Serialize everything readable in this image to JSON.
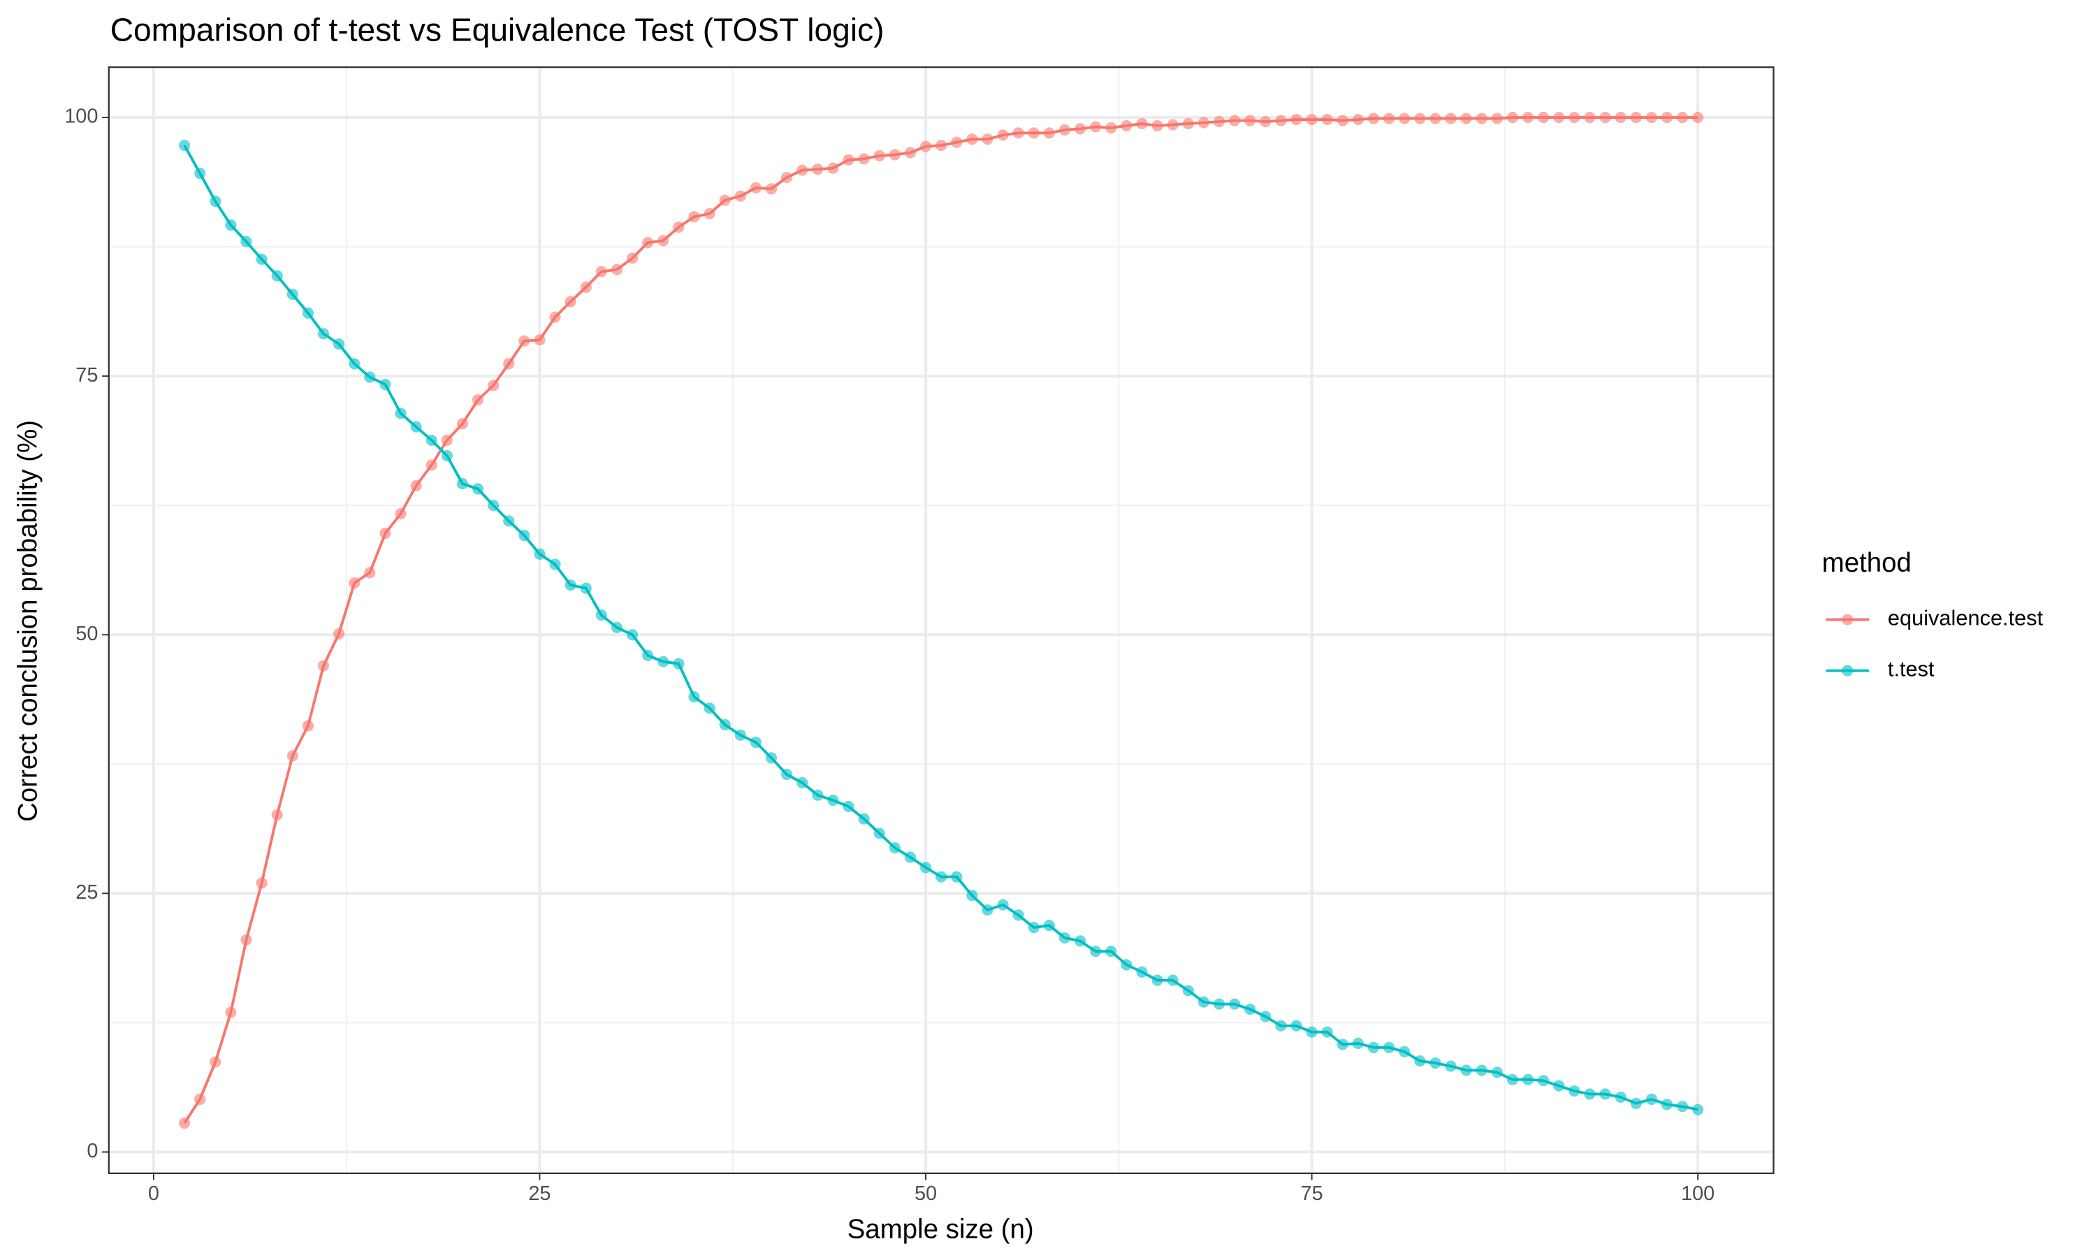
{
  "chart_data": {
    "type": "line",
    "title": "Comparison of t-test vs Equivalence Test (TOST logic)",
    "x_label": "Sample size (n)",
    "y_label": "Correct conclusion probability (%)",
    "legend_title": "method",
    "legend_position": "right",
    "grid": true,
    "x": [
      2,
      3,
      4,
      5,
      6,
      7,
      8,
      9,
      10,
      11,
      12,
      13,
      14,
      15,
      16,
      17,
      18,
      19,
      20,
      21,
      22,
      23,
      24,
      25,
      26,
      27,
      28,
      29,
      30,
      31,
      32,
      33,
      34,
      35,
      36,
      37,
      38,
      39,
      40,
      41,
      42,
      43,
      44,
      45,
      46,
      47,
      48,
      49,
      50,
      51,
      52,
      53,
      54,
      55,
      56,
      57,
      58,
      59,
      60,
      61,
      62,
      63,
      64,
      65,
      66,
      67,
      68,
      69,
      70,
      71,
      72,
      73,
      74,
      75,
      76,
      77,
      78,
      79,
      80,
      81,
      82,
      83,
      84,
      85,
      86,
      87,
      88,
      89,
      90,
      91,
      92,
      93,
      94,
      95,
      96,
      97,
      98,
      99,
      100
    ],
    "series": [
      {
        "name": "equivalence.test",
        "color": "#F8766D",
        "values": [
          2.8,
          5.1,
          8.7,
          13.5,
          20.5,
          26,
          32.6,
          38.3,
          41.2,
          47,
          50.1,
          55,
          56,
          59.8,
          61.7,
          64.4,
          66.4,
          68.8,
          70.4,
          72.7,
          74.1,
          76.2,
          78.4,
          78.5,
          80.7,
          82.2,
          83.6,
          85.1,
          85.3,
          86.4,
          87.9,
          88.1,
          89.4,
          90.4,
          90.7,
          92,
          92.4,
          93.2,
          93.1,
          94.2,
          94.9,
          95,
          95.1,
          95.9,
          96,
          96.3,
          96.4,
          96.6,
          97.2,
          97.3,
          97.6,
          97.9,
          97.9,
          98.3,
          98.5,
          98.5,
          98.5,
          98.8,
          98.9,
          99.1,
          99,
          99.2,
          99.4,
          99.2,
          99.3,
          99.4,
          99.5,
          99.6,
          99.7,
          99.7,
          99.6,
          99.7,
          99.8,
          99.8,
          99.8,
          99.7,
          99.8,
          99.9,
          99.9,
          99.9,
          99.9,
          99.9,
          99.9,
          99.9,
          99.9,
          99.9,
          100,
          100,
          100,
          100,
          100,
          100,
          100,
          100,
          100,
          100,
          100,
          100,
          100
        ]
      },
      {
        "name": "t.test",
        "color": "#00BFC4",
        "values": [
          97.3,
          94.6,
          91.9,
          89.6,
          88,
          86.3,
          84.7,
          82.9,
          81.1,
          79.1,
          78.1,
          76.2,
          74.9,
          74.2,
          71.4,
          70.1,
          68.8,
          67.3,
          64.6,
          64.1,
          62.5,
          61,
          59.6,
          57.8,
          56.8,
          54.8,
          54.5,
          51.9,
          50.7,
          50,
          48,
          47.4,
          47.2,
          44,
          42.9,
          41.3,
          40.3,
          39.6,
          38.1,
          36.5,
          35.7,
          34.5,
          34,
          33.4,
          32.2,
          30.8,
          29.4,
          28.5,
          27.5,
          26.6,
          26.6,
          24.8,
          23.4,
          23.9,
          22.9,
          21.7,
          21.9,
          20.7,
          20.4,
          19.4,
          19.4,
          18.1,
          17.4,
          16.6,
          16.6,
          15.6,
          14.5,
          14.3,
          14.3,
          13.8,
          13.1,
          12.2,
          12.2,
          11.6,
          11.6,
          10.4,
          10.5,
          10.1,
          10.1,
          9.7,
          8.8,
          8.6,
          8.3,
          7.9,
          7.9,
          7.7,
          7,
          7,
          6.9,
          6.4,
          5.9,
          5.6,
          5.6,
          5.3,
          4.7,
          5.1,
          4.6,
          4.4,
          4.1
        ]
      }
    ],
    "xlim": [
      -2.9,
      104.9
    ],
    "xticks": [
      0,
      25,
      50,
      75,
      100
    ],
    "ylim": [
      -2.06,
      104.86
    ],
    "yticks": [
      0,
      25,
      50,
      75,
      100
    ]
  }
}
